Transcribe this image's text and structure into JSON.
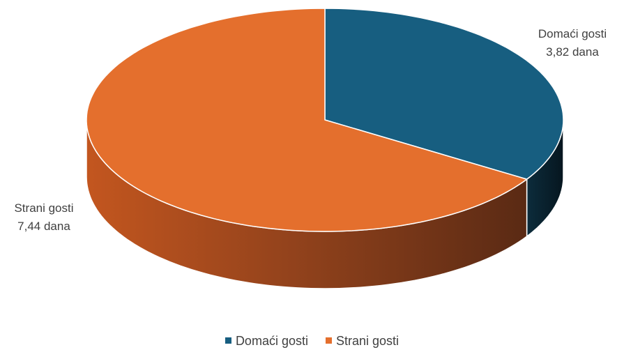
{
  "chart_data": {
    "type": "pie",
    "variant": "3d",
    "title": "",
    "unit": "dana",
    "legend_position": "bottom",
    "slices": [
      {
        "name": "Domaći gosti",
        "value": 3.82,
        "value_label": "3,82 dana",
        "color": "#175e80"
      },
      {
        "name": "Strani gosti",
        "value": 7.44,
        "value_label": "7,44 dana",
        "color": "#e46f2d"
      }
    ]
  }
}
